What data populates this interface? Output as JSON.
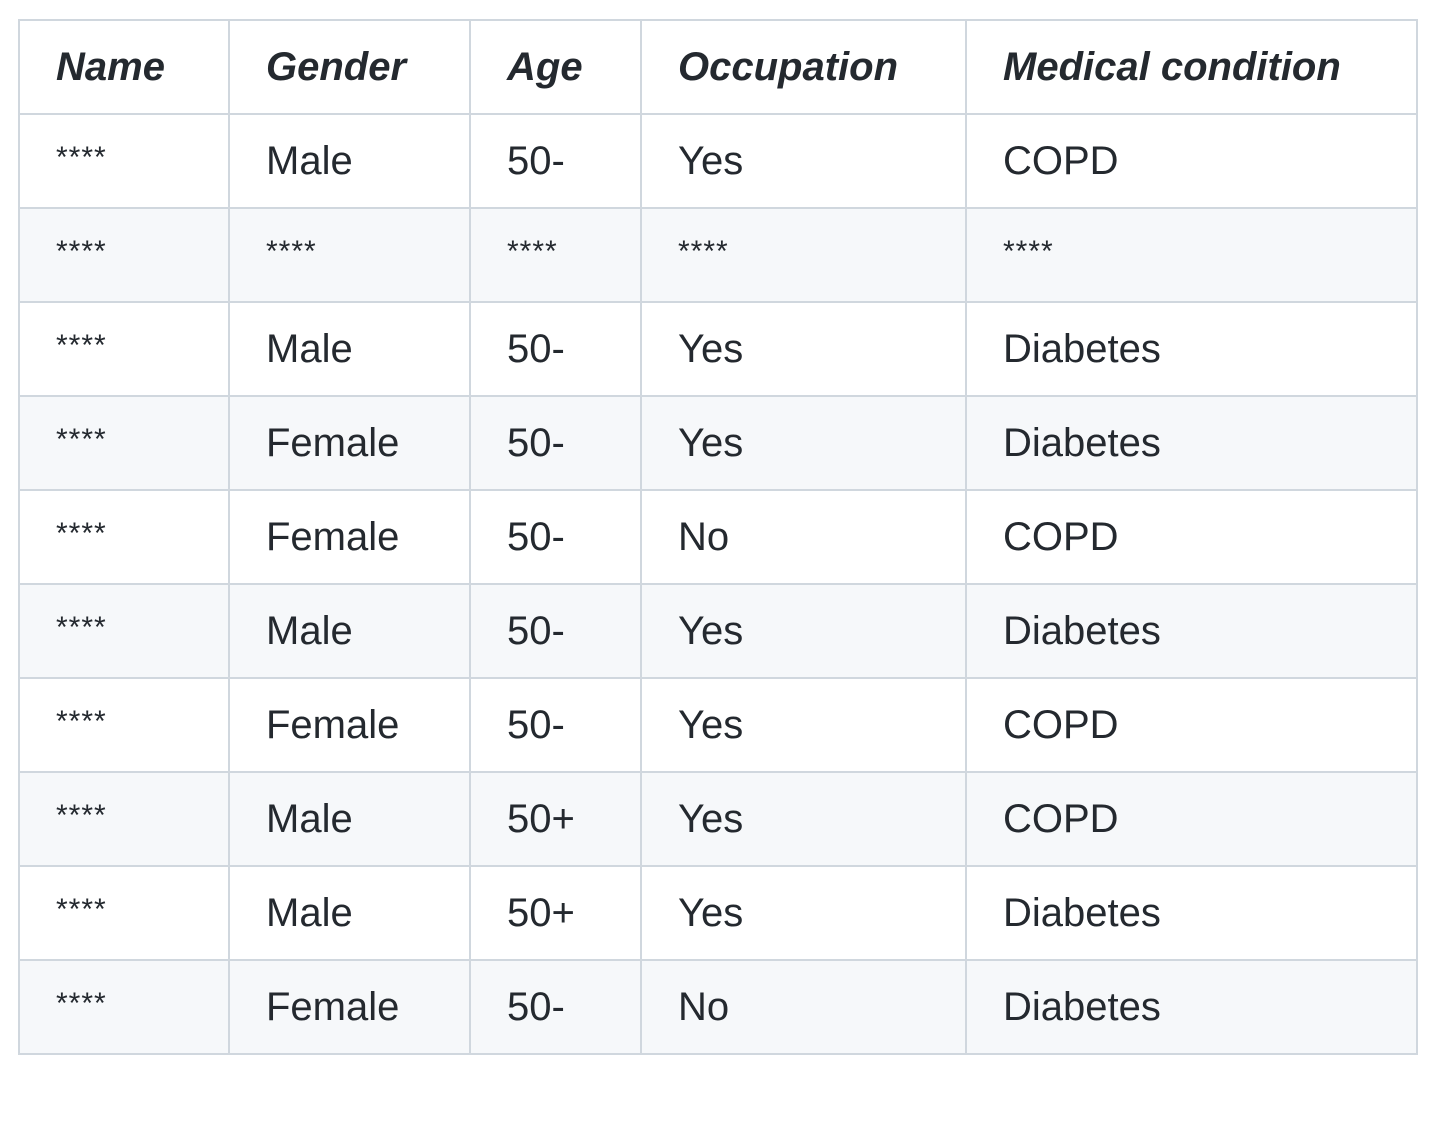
{
  "table": {
    "headers": [
      "Name",
      "Gender",
      "Age",
      "Occupation",
      "Medical condition"
    ],
    "rows": [
      [
        "****",
        "Male",
        "50-",
        "Yes",
        "COPD"
      ],
      [
        "****",
        "****",
        "****",
        "****",
        "****"
      ],
      [
        "****",
        "Male",
        "50-",
        "Yes",
        "Diabetes"
      ],
      [
        "****",
        "Female",
        "50-",
        "Yes",
        "Diabetes"
      ],
      [
        "****",
        "Female",
        "50-",
        "No",
        "COPD"
      ],
      [
        "****",
        "Male",
        "50-",
        "Yes",
        "Diabetes"
      ],
      [
        "****",
        "Female",
        "50-",
        "Yes",
        "COPD"
      ],
      [
        "****",
        "Male",
        "50+",
        "Yes",
        "COPD"
      ],
      [
        "****",
        "Male",
        "50+",
        "Yes",
        "Diabetes"
      ],
      [
        "****",
        "Female",
        "50-",
        "No",
        "Diabetes"
      ]
    ]
  }
}
